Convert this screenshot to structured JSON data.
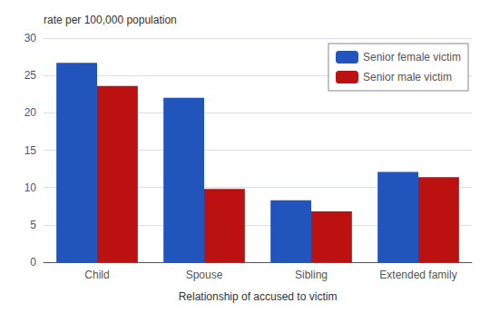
{
  "chart_data": {
    "type": "bar",
    "categories": [
      "Child",
      "Spouse",
      "Sibling",
      "Extended family"
    ],
    "series": [
      {
        "name": "Senior female victim",
        "color": "#2255BB",
        "values": [
          26.7,
          22.0,
          8.3,
          12.1
        ]
      },
      {
        "name": "Senior male victim",
        "color": "#BB1111",
        "values": [
          23.6,
          9.8,
          6.8,
          11.4
        ]
      }
    ],
    "xlabel": "Relationship of accused to victim",
    "ylabel": "rate per 100,000 population",
    "ylim": [
      0,
      30
    ],
    "yticks": [
      0,
      5,
      10,
      15,
      20,
      25,
      30
    ],
    "grid": true,
    "legend": "upper right"
  }
}
